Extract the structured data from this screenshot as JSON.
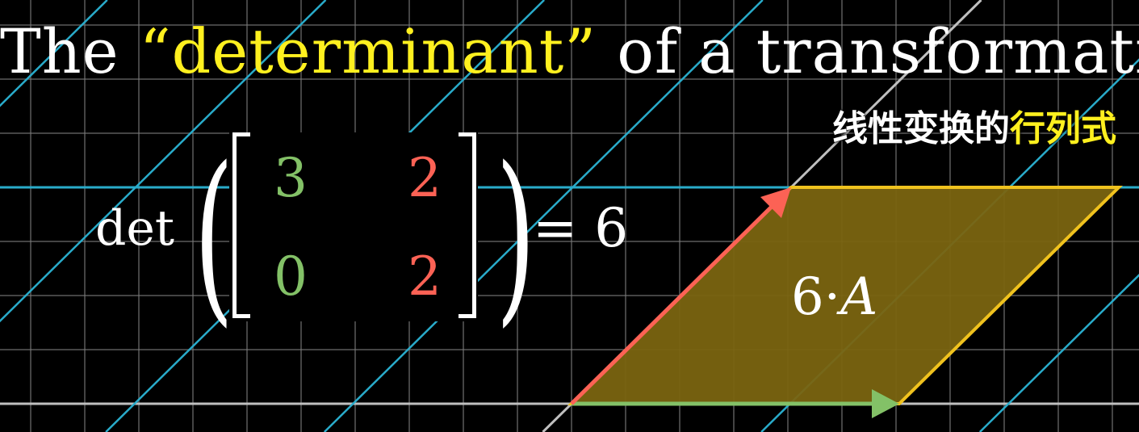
{
  "title": {
    "before": "The ",
    "highlight": "“determinant”",
    "after": " of a transformation"
  },
  "subtitle": {
    "plain": "线性变换的",
    "highlight": "行列式"
  },
  "formula": {
    "det_label": "det",
    "matrix": [
      [
        "3",
        "2"
      ],
      [
        "0",
        "2"
      ]
    ],
    "equals": "= 6"
  },
  "area_label": {
    "scalar": "6·",
    "variable": "A"
  },
  "colors": {
    "background": "#000000",
    "grid": "#7a7a7a",
    "axis": "#bfbfbf",
    "sheared_lines": "#29abca",
    "highlight": "#fff01f",
    "i_hat": "#83c167",
    "j_hat": "#fc6255",
    "area_fill": "#7a6410",
    "area_stroke": "#f0c21e"
  }
}
